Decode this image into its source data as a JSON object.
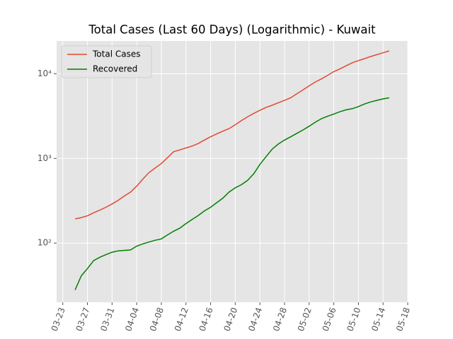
{
  "chart_data": {
    "type": "line",
    "title": "Total Cases (Last 60 Days) (Logarithmic) - Kuwait",
    "x": [
      "03-25",
      "03-26",
      "03-27",
      "03-28",
      "03-29",
      "03-30",
      "03-31",
      "04-01",
      "04-02",
      "04-03",
      "04-04",
      "04-05",
      "04-06",
      "04-07",
      "04-08",
      "04-09",
      "04-10",
      "04-11",
      "04-12",
      "04-13",
      "04-14",
      "04-15",
      "04-16",
      "04-17",
      "04-18",
      "04-19",
      "04-20",
      "04-21",
      "04-22",
      "04-23",
      "04-24",
      "04-25",
      "04-26",
      "04-27",
      "04-28",
      "04-29",
      "04-30",
      "05-01",
      "05-02",
      "05-03",
      "05-04",
      "05-05",
      "05-06",
      "05-07",
      "05-08",
      "05-09",
      "05-10",
      "05-11",
      "05-12",
      "05-13",
      "05-14",
      "05-15"
    ],
    "series": [
      {
        "name": "Total Cases",
        "color": "#e24a33",
        "values": [
          193,
          200,
          210,
          228,
          245,
          265,
          290,
          320,
          360,
          400,
          470,
          570,
          680,
          770,
          870,
          1020,
          1200,
          1260,
          1330,
          1400,
          1500,
          1650,
          1800,
          1950,
          2100,
          2250,
          2500,
          2800,
          3100,
          3400,
          3700,
          4000,
          4250,
          4550,
          4850,
          5200,
          5800,
          6450,
          7200,
          8000,
          8700,
          9600,
          10600,
          11400,
          12400,
          13500,
          14300,
          15100,
          16000,
          16800,
          17700,
          18600
        ]
      },
      {
        "name": "Recovered",
        "color": "#008000",
        "values": [
          28,
          41,
          50,
          62,
          68,
          73,
          78,
          81,
          82,
          83,
          92,
          98,
          103,
          108,
          112,
          125,
          138,
          150,
          170,
          190,
          212,
          240,
          265,
          300,
          340,
          400,
          450,
          490,
          550,
          660,
          850,
          1050,
          1290,
          1480,
          1650,
          1800,
          1980,
          2170,
          2400,
          2680,
          2950,
          3150,
          3350,
          3560,
          3750,
          3870,
          4100,
          4400,
          4650,
          4850,
          5050,
          5200
        ]
      }
    ],
    "xlim": [
      "03-22",
      "05-18"
    ],
    "xticks": [
      "03-23",
      "03-27",
      "03-31",
      "04-04",
      "04-08",
      "04-12",
      "04-16",
      "04-20",
      "04-24",
      "04-28",
      "05-02",
      "05-06",
      "05-10",
      "05-14",
      "05-18"
    ],
    "ylim": [
      20,
      24400
    ],
    "yscale": "log",
    "yticks": [
      {
        "value": 100,
        "label": "10²"
      },
      {
        "value": 1000,
        "label": "10³"
      },
      {
        "value": 10000,
        "label": "10⁴"
      }
    ],
    "grid": true,
    "legend": "upper left"
  }
}
